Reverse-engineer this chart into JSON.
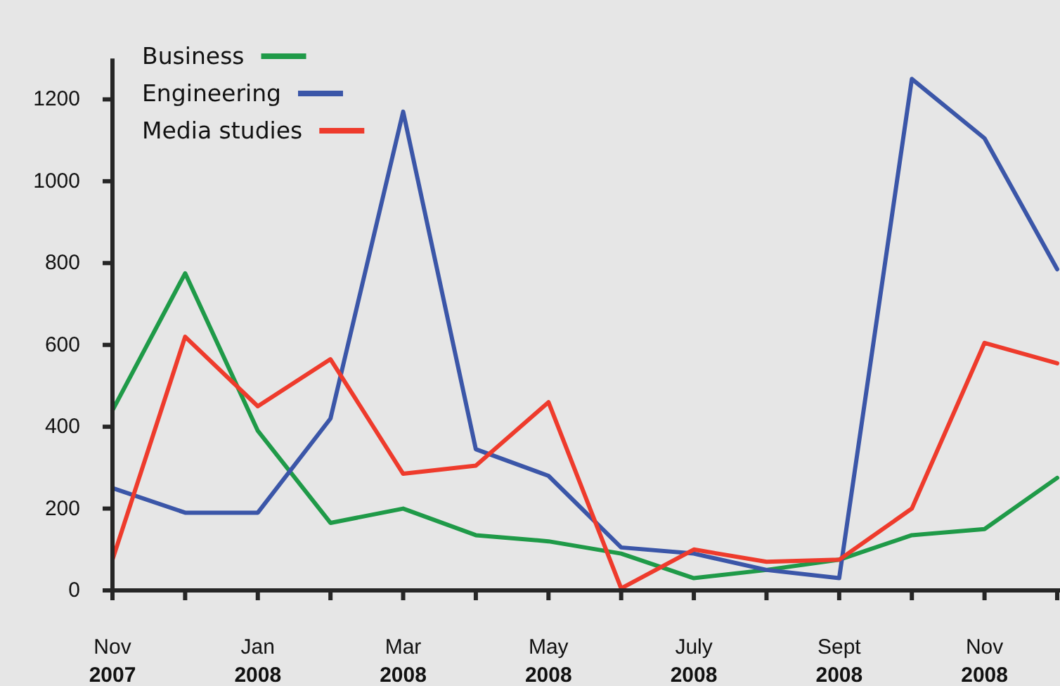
{
  "chart_data": {
    "type": "line",
    "categories": [
      "Nov 2007",
      null,
      "Jan 2008",
      null,
      "Mar 2008",
      null,
      "May 2008",
      null,
      "July 2008",
      null,
      "Sept 2008",
      null,
      "Nov 2008",
      null
    ],
    "series": [
      {
        "name": "Business",
        "color": "#1f9a48",
        "values": [
          440,
          775,
          390,
          165,
          200,
          135,
          120,
          90,
          30,
          50,
          75,
          135,
          150,
          275
        ]
      },
      {
        "name": "Engineering",
        "color": "#3b56a8",
        "values": [
          250,
          190,
          190,
          420,
          1170,
          345,
          280,
          105,
          90,
          50,
          30,
          1250,
          1105,
          785
        ]
      },
      {
        "name": "Media studies",
        "color": "#ee3b2c",
        "values": [
          75,
          620,
          450,
          565,
          285,
          305,
          460,
          5,
          100,
          70,
          75,
          200,
          605,
          555
        ]
      }
    ],
    "ylim": [
      0,
      1300
    ],
    "yticks": [
      0,
      200,
      400,
      600,
      800,
      1000,
      1200
    ],
    "legend": "top left"
  }
}
